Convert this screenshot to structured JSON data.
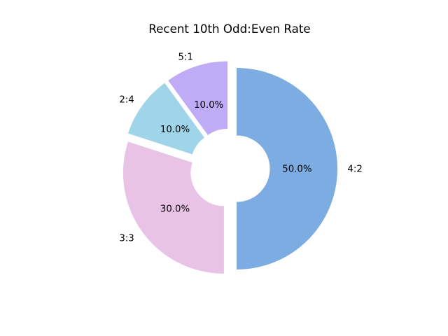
{
  "chart_data": {
    "type": "pie",
    "title": "Recent 10th Odd:Even Rate",
    "donut": true,
    "hole_ratio": 0.33,
    "start_angle": 90,
    "direction": "clockwise",
    "explode": 0.07,
    "legend": "none",
    "background_color": "#ffffff",
    "text_color": "#000000",
    "slices": [
      {
        "label": "4:2",
        "value": 50.0,
        "pct_label": "50.0%",
        "color": "#7dace2"
      },
      {
        "label": "3:3",
        "value": 30.0,
        "pct_label": "30.0%",
        "color": "#e9c3e6"
      },
      {
        "label": "2:4",
        "value": 10.0,
        "pct_label": "10.0%",
        "color": "#a0d4e9"
      },
      {
        "label": "5:1",
        "value": 10.0,
        "pct_label": "10.0%",
        "color": "#bfabf6"
      }
    ]
  }
}
